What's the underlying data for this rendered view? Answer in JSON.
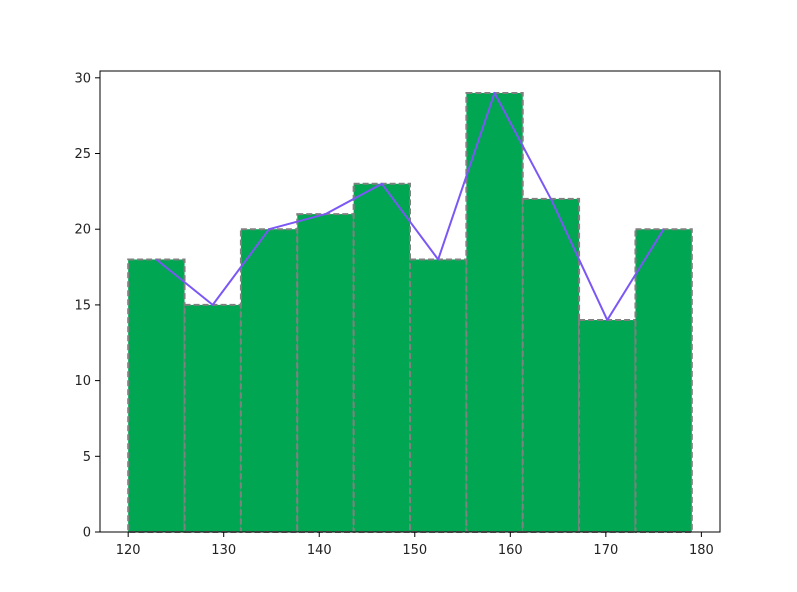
{
  "chart_data": {
    "type": "bar",
    "bins": [
      {
        "x0": 120.0,
        "x1": 125.9,
        "value": 18
      },
      {
        "x0": 125.9,
        "x1": 131.8,
        "value": 15
      },
      {
        "x0": 131.8,
        "x1": 137.7,
        "value": 20
      },
      {
        "x0": 137.7,
        "x1": 143.6,
        "value": 21
      },
      {
        "x0": 143.6,
        "x1": 149.5,
        "value": 23
      },
      {
        "x0": 149.5,
        "x1": 155.4,
        "value": 18
      },
      {
        "x0": 155.4,
        "x1": 161.3,
        "value": 29
      },
      {
        "x0": 161.3,
        "x1": 167.2,
        "value": 22
      },
      {
        "x0": 167.2,
        "x1": 173.1,
        "value": 14
      },
      {
        "x0": 173.1,
        "x1": 179.0,
        "value": 20
      }
    ],
    "line": {
      "x": [
        122.95,
        128.85,
        134.75,
        140.65,
        146.55,
        152.45,
        158.35,
        164.25,
        170.15,
        176.05
      ],
      "y": [
        18,
        15,
        20,
        21,
        23,
        18,
        29,
        22,
        14,
        20
      ]
    },
    "xlim": [
      117.05,
      181.95
    ],
    "ylim": [
      0,
      30.45
    ],
    "xticks": [
      120,
      130,
      140,
      150,
      160,
      170,
      180
    ],
    "yticks": [
      0,
      5,
      10,
      15,
      20,
      25,
      30
    ],
    "grid": false,
    "title": "",
    "xlabel": "",
    "ylabel": "",
    "colors": {
      "bar_fill": "#00a651",
      "bar_edge": "#808080",
      "line": "#7b57f5",
      "axis": "#000000"
    }
  }
}
